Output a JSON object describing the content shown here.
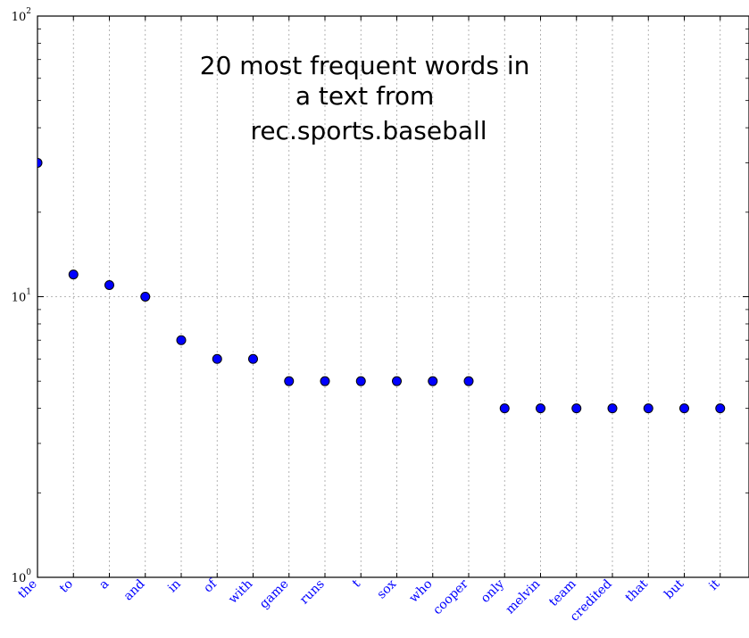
{
  "chart_data": {
    "type": "scatter",
    "title_lines": [
      "20 most frequent words in",
      "a text from",
      "rec.sports.baseball"
    ],
    "xlabel": "",
    "ylabel": "",
    "categories": [
      "the",
      "to",
      "a",
      "and",
      "in",
      "of",
      "with",
      "game",
      "runs",
      "t",
      "sox",
      "who",
      "cooper",
      "only",
      "melvin",
      "team",
      "credited",
      "that",
      "but",
      "it"
    ],
    "values": [
      30,
      12,
      11,
      10,
      7,
      6,
      6,
      5,
      5,
      5,
      5,
      5,
      5,
      4,
      4,
      4,
      4,
      4,
      4,
      4
    ],
    "y_scale": "log",
    "ylim": [
      1,
      100
    ],
    "y_ticks": [
      {
        "base": "10",
        "exp": "0",
        "value": 1
      },
      {
        "base": "10",
        "exp": "1",
        "value": 10
      },
      {
        "base": "10",
        "exp": "2",
        "value": 100
      }
    ],
    "grid": true,
    "marker_color": "#0000ff",
    "label_color": "#0000ff"
  }
}
